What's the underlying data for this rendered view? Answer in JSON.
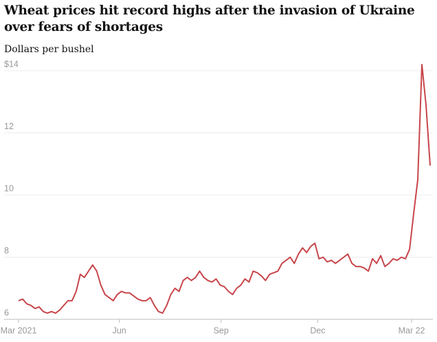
{
  "chart_data": {
    "type": "line",
    "title": "Wheat prices hit record highs after the invasion of Ukraine over fears of shortages",
    "subtitle": "Dollars per bushel",
    "series": [
      {
        "name": "Wheat",
        "color": "#c8454a",
        "values": [
          6.6,
          6.65,
          6.5,
          6.45,
          6.35,
          6.4,
          6.25,
          6.2,
          6.25,
          6.2,
          6.3,
          6.45,
          6.6,
          6.6,
          6.9,
          7.45,
          7.35,
          7.55,
          7.75,
          7.55,
          7.1,
          6.8,
          6.7,
          6.6,
          6.8,
          6.9,
          6.85,
          6.85,
          6.75,
          6.65,
          6.6,
          6.6,
          6.7,
          6.45,
          6.25,
          6.2,
          6.45,
          6.8,
          7.0,
          6.9,
          7.25,
          7.35,
          7.25,
          7.35,
          7.55,
          7.35,
          7.25,
          7.2,
          7.3,
          7.1,
          7.05,
          6.9,
          6.8,
          7.0,
          7.1,
          7.3,
          7.2,
          7.55,
          7.5,
          7.4,
          7.25,
          7.45,
          7.5,
          7.55,
          7.8,
          7.9,
          8.0,
          7.8,
          8.1,
          8.3,
          8.15,
          8.35,
          8.45,
          7.95,
          8.0,
          7.85,
          7.9,
          7.8,
          7.9,
          8.0,
          8.1,
          7.8,
          7.7,
          7.7,
          7.65,
          7.55,
          7.95,
          7.8,
          8.05,
          7.7,
          7.8,
          7.95,
          7.9,
          8.0,
          7.95,
          8.25,
          9.4,
          10.5,
          14.2,
          12.9,
          10.95
        ]
      }
    ],
    "xlim": [
      0,
      100
    ],
    "xticks": [
      {
        "value": 0,
        "label": "Mar 2021"
      },
      {
        "value": 24.5,
        "label": "Jun"
      },
      {
        "value": 49.2,
        "label": "Sep"
      },
      {
        "value": 72.7,
        "label": "Dec"
      },
      {
        "value": 95.5,
        "label": "Mar 22"
      }
    ],
    "ylim": [
      6,
      14
    ],
    "yticks": [
      6,
      8,
      10,
      12,
      {
        "value": 14,
        "label": "$14"
      }
    ],
    "grid": true
  }
}
